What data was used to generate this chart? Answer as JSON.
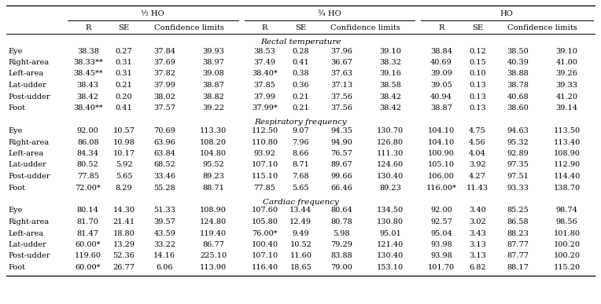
{
  "row_labels": [
    "Eye",
    "Right-area",
    "Left-area",
    "Lat-udder",
    "Post-udder",
    "Foot"
  ],
  "sections": [
    {
      "title": "Rectal temperature",
      "rows": [
        [
          "38.38",
          "0.27",
          "37.84",
          "39.93",
          "38.53",
          "0.28",
          "37.96",
          "39.10",
          "38.84",
          "0.12",
          "38.50",
          "39.10"
        ],
        [
          "38.33**",
          "0.31",
          "37.69",
          "38.97",
          "37.49",
          "0.41",
          "36.67",
          "38.32",
          "40.69",
          "0.15",
          "40.39",
          "41.00"
        ],
        [
          "38.45**",
          "0.31",
          "37.82",
          "39.08",
          "38.40*",
          "0.38",
          "37.63",
          "39.16",
          "39.09",
          "0.10",
          "38.88",
          "39.26"
        ],
        [
          "38.43",
          "0.21",
          "37.99",
          "38.87",
          "37.85",
          "0.36",
          "37.13",
          "38.58",
          "39.05",
          "0.13",
          "38.78",
          "39.33"
        ],
        [
          "38.42",
          "0.20",
          "38.02",
          "38.82",
          "37.99",
          "0.21",
          "37.56",
          "38.42",
          "40.94",
          "0.13",
          "40.68",
          "41.20"
        ],
        [
          "38.40**",
          "0.41",
          "37.57",
          "39.22",
          "37.99*",
          "0.21",
          "37.56",
          "38.42",
          "38.87",
          "0.13",
          "38.60",
          "39.14"
        ]
      ]
    },
    {
      "title": "Respiratory frequency",
      "rows": [
        [
          "92.00",
          "10.57",
          "70.69",
          "113.30",
          "112.50",
          "9.07",
          "94.35",
          "130.70",
          "104.10",
          "4.75",
          "94.63",
          "113.50"
        ],
        [
          "86.08",
          "10.98",
          "63.96",
          "108.20",
          "110.80",
          "7.96",
          "94.90",
          "126.80",
          "104.10",
          "4.56",
          "95.32",
          "113.40"
        ],
        [
          "84.34",
          "10.17",
          "63.84",
          "104.80",
          "93.92",
          "8.66",
          "76.57",
          "111.30",
          "100.90",
          "4.04",
          "92.89",
          "108.90"
        ],
        [
          "80.52",
          "5.92",
          "68.52",
          "95.52",
          "107.10",
          "8.71",
          "89.67",
          "124.60",
          "105.10",
          "3.92",
          "97.35",
          "112.90"
        ],
        [
          "77.85",
          "5.65",
          "33.46",
          "89.23",
          "115.10",
          "7.68",
          "99.66",
          "130.40",
          "106.00",
          "4.27",
          "97.51",
          "114.40"
        ],
        [
          "72.00*",
          "8.29",
          "55.28",
          "88.71",
          "77.85",
          "5.65",
          "66.46",
          "89.23",
          "116.00*",
          "11.43",
          "93.33",
          "138.70"
        ]
      ]
    },
    {
      "title": "Cardiac frequency",
      "rows": [
        [
          "80.14",
          "14.30",
          "51.33",
          "108.90",
          "107.60",
          "13.44",
          "80.64",
          "134.50",
          "92.00",
          "3.40",
          "85.25",
          "98.74"
        ],
        [
          "81.70",
          "21.41",
          "39.57",
          "124.80",
          "105.80",
          "12.49",
          "80.78",
          "130.80",
          "92.57",
          "3.02",
          "86.58",
          "98.56"
        ],
        [
          "81.47",
          "18.80",
          "43.59",
          "119.40",
          "76.00*",
          "9.49",
          "5.98",
          "95.01",
          "95.04",
          "3.43",
          "88.23",
          "101.80"
        ],
        [
          "60.00*",
          "13.29",
          "33.22",
          "86.77",
          "100.40",
          "10.52",
          "79.29",
          "121.40",
          "93.98",
          "3.13",
          "87.77",
          "100.20"
        ],
        [
          "119.60",
          "52.36",
          "14.16",
          "225.10",
          "107.10",
          "11.60",
          "83.88",
          "130.40",
          "93.98",
          "3.13",
          "87.77",
          "100.20"
        ],
        [
          "60.00*",
          "26.77",
          "6.06",
          "113.90",
          "116.40",
          "18.65",
          "79.00",
          "153.10",
          "101.70",
          "6.82",
          "88.17",
          "115.20"
        ]
      ]
    }
  ],
  "bg_color": "#ffffff",
  "text_color": "#000000",
  "font_size": 7.0,
  "header_font_size": 7.2,
  "section_font_size": 7.5,
  "group_labels": [
    "½ HO",
    "¾ HO",
    "HO"
  ]
}
